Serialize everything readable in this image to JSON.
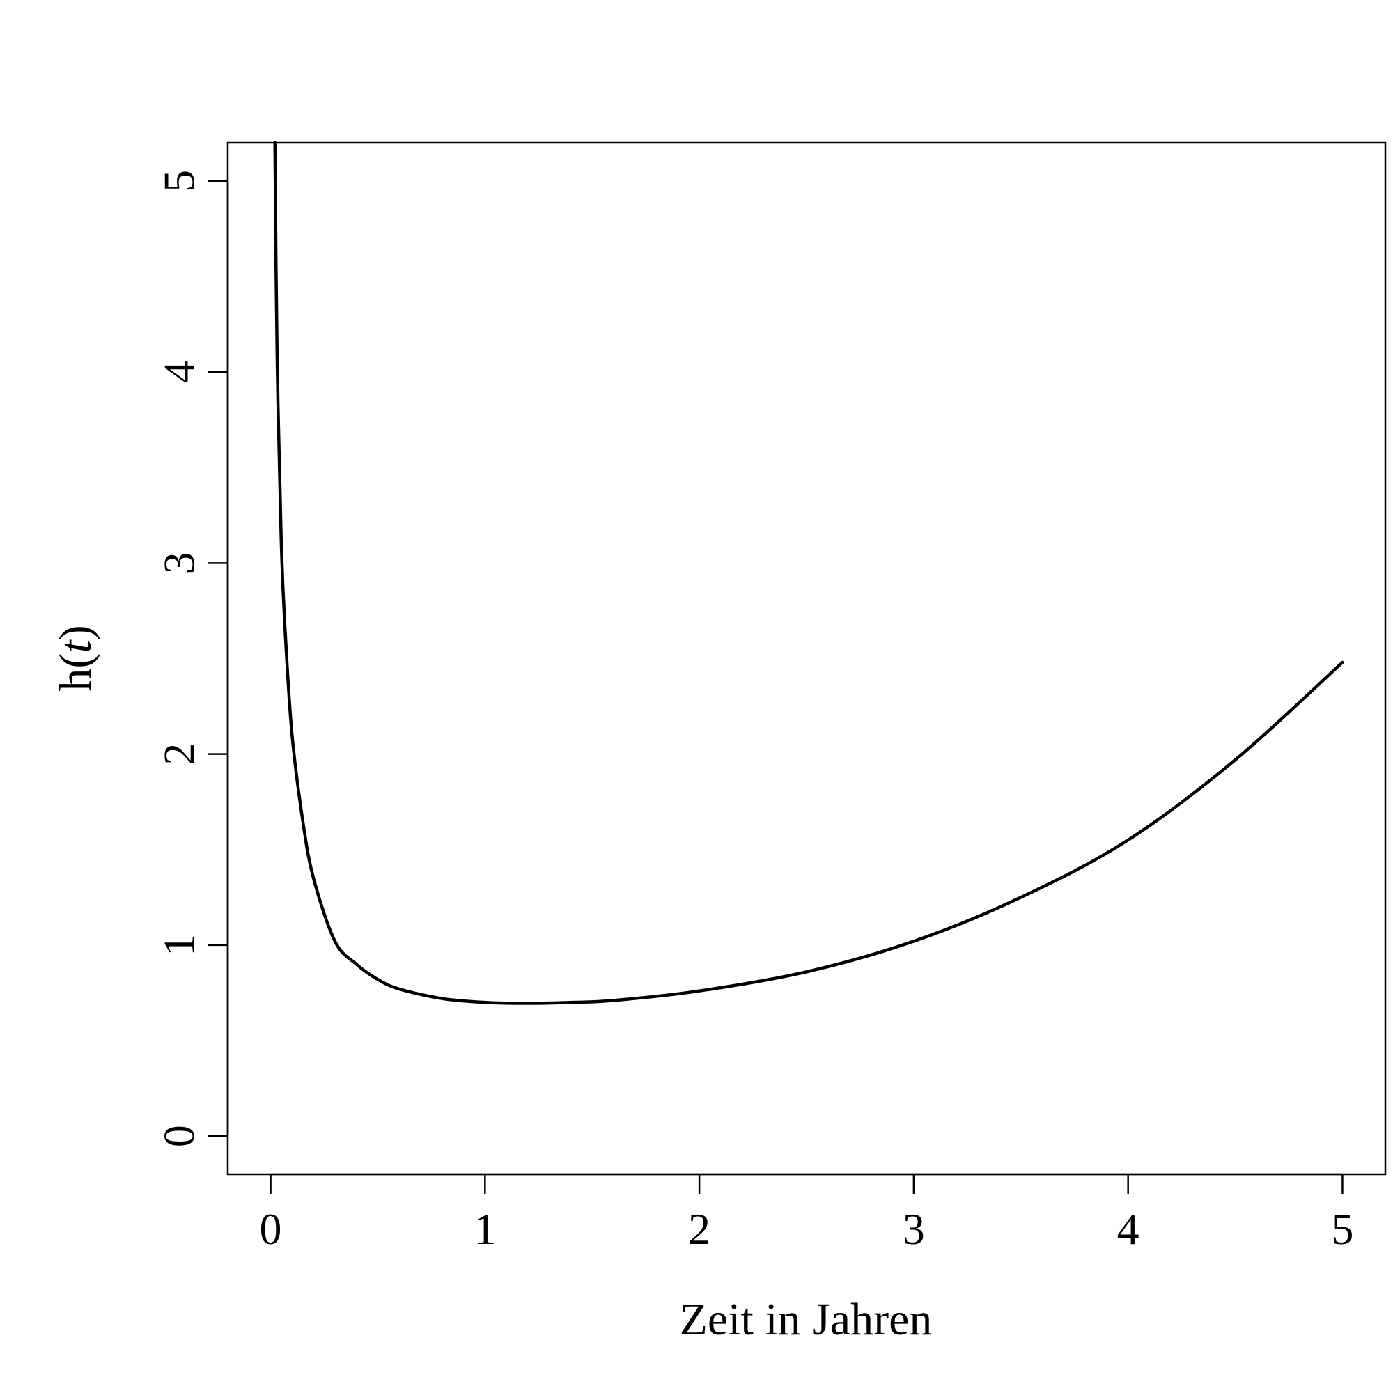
{
  "chart_data": {
    "type": "line",
    "title": "",
    "xlabel": "Zeit in Jahren",
    "ylabel": "h(t)",
    "ylabel_parts": {
      "prefix": "h(",
      "var": "t",
      "suffix": ")"
    },
    "xlim": [
      -0.2,
      5.2
    ],
    "ylim": [
      -0.2,
      5.2
    ],
    "xticks": [
      0,
      1,
      2,
      3,
      4,
      5
    ],
    "yticks": [
      0,
      1,
      2,
      3,
      4,
      5
    ],
    "grid": false,
    "legend": "none",
    "line_color": "#000000",
    "series": [
      {
        "x": [
          0.02,
          0.03,
          0.05,
          0.07,
          0.1,
          0.15,
          0.2,
          0.3,
          0.4,
          0.5,
          0.6,
          0.8,
          1.0,
          1.2,
          1.4,
          1.6,
          2.0,
          2.5,
          3.0,
          3.5,
          4.0,
          4.5,
          5.0
        ],
        "y": [
          5.2,
          4.1,
          3.1,
          2.6,
          2.1,
          1.65,
          1.35,
          1.02,
          0.9,
          0.82,
          0.77,
          0.72,
          0.7,
          0.695,
          0.7,
          0.71,
          0.76,
          0.86,
          1.02,
          1.25,
          1.55,
          1.97,
          2.48
        ]
      }
    ]
  }
}
